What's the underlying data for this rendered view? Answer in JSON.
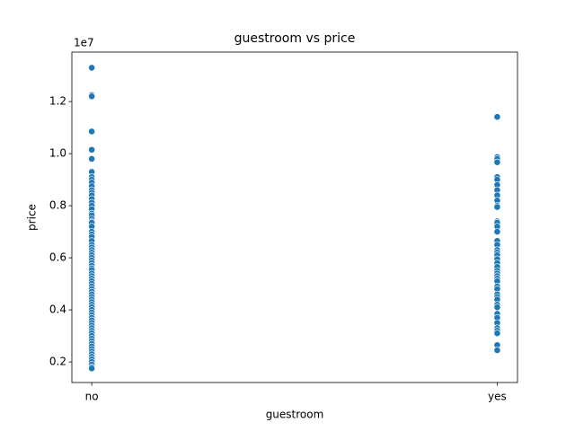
{
  "chart_data": {
    "type": "strip",
    "title": "guestroom vs price",
    "x_label": "guestroom",
    "y_label": "price",
    "y_offset_label": "1e7",
    "categories": [
      "no",
      "yes"
    ],
    "xlim": [
      -0.049,
      1.05
    ],
    "ylim": [
      0.121,
      1.39
    ],
    "yticks": [
      0.2,
      0.4,
      0.6,
      0.8,
      {
        "value": 1,
        "label": "1.0"
      },
      1.2
    ],
    "color": "#1f77b4",
    "values": [
      [
        1.33,
        1.225,
        1.22,
        1.085,
        1.015,
        0.98,
        0.93,
        0.91,
        0.9,
        0.889,
        0.875,
        0.86,
        0.85,
        0.84,
        0.826,
        0.812,
        0.8,
        0.787,
        0.77,
        0.763,
        0.75,
        0.74,
        0.735,
        0.72,
        0.7,
        0.69,
        0.68,
        0.665,
        0.65,
        0.64,
        0.63,
        0.62,
        0.61,
        0.6,
        0.59,
        0.58,
        0.57,
        0.56,
        0.553,
        0.54,
        0.53,
        0.52,
        0.51,
        0.5,
        0.49,
        0.48,
        0.47,
        0.46,
        0.45,
        0.44,
        0.43,
        0.42,
        0.41,
        0.4,
        0.39,
        0.38,
        0.37,
        0.36,
        0.35,
        0.34,
        0.33,
        0.32,
        0.31,
        0.3,
        0.29,
        0.28,
        0.27,
        0.26,
        0.25,
        0.24,
        0.23,
        0.22,
        0.21,
        0.2,
        0.19,
        0.18,
        0.175
      ],
      [
        1.141,
        0.987,
        0.98,
        0.967,
        0.91,
        0.9,
        0.88,
        0.86,
        0.84,
        0.82,
        0.8,
        0.795,
        0.74,
        0.735,
        0.72,
        0.7,
        0.665,
        0.65,
        0.63,
        0.62,
        0.61,
        0.595,
        0.58,
        0.565,
        0.55,
        0.54,
        0.53,
        0.52,
        0.51,
        0.49,
        0.48,
        0.46,
        0.45,
        0.44,
        0.42,
        0.41,
        0.385,
        0.37,
        0.35,
        0.33,
        0.32,
        0.31,
        0.265,
        0.245
      ]
    ]
  }
}
